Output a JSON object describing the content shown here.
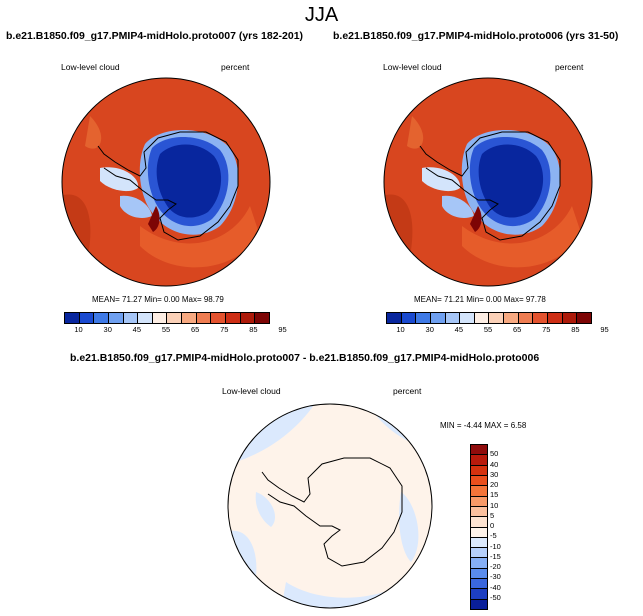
{
  "figure": {
    "title": "JJA"
  },
  "panel_left": {
    "header": "b.e21.B1850.f09_g17.PMIP4-midHolo.proto007 (yrs 182-201)",
    "variable_label": "Low-level cloud",
    "units_label": "percent",
    "stats": "MEAN= 71.27  Min=  0.00  Max= 98.79"
  },
  "panel_right": {
    "header": "b.e21.B1850.f09_g17.PMIP4-midHolo.proto006 (yrs 31-50)",
    "variable_label": "Low-level cloud",
    "units_label": "percent",
    "stats": "MEAN= 71.21  Min=  0.00  Max= 97.78"
  },
  "panel_diff": {
    "header": "b.e21.B1850.f09_g17.PMIP4-midHolo.proto007 - b.e21.B1850.f09_g17.PMIP4-midHolo.proto006",
    "variable_label": "Low-level cloud",
    "units_label": "percent",
    "stats": "MIN = -4.44 MAX =  6.58"
  },
  "colorbar_abs": {
    "ticks": [
      "10",
      "30",
      "45",
      "55",
      "65",
      "75",
      "85",
      "95"
    ],
    "colors": [
      "#08269e",
      "#1a4ad0",
      "#3f7ae6",
      "#6fa0f0",
      "#a6c6f7",
      "#d3e4fb",
      "#fdeee4",
      "#fbd1b8",
      "#f7a981",
      "#ef7d52",
      "#e4532f",
      "#cd2e15",
      "#ad1a0a",
      "#7d0505"
    ]
  },
  "colorbar_diff": {
    "ticks": [
      "50",
      "40",
      "30",
      "20",
      "15",
      "10",
      "5",
      "0",
      "-5",
      "-10",
      "-15",
      "-20",
      "-30",
      "-40",
      "-50"
    ],
    "colors": [
      "#8f0c0c",
      "#b81a0c",
      "#d5320f",
      "#ea4f1d",
      "#f47439",
      "#f89a68",
      "#fbc09e",
      "#fde3d1",
      "#fef3ea",
      "#dbe9fd",
      "#b6d0fb",
      "#86aff5",
      "#5a8ced",
      "#3a67df",
      "#1d3fc2",
      "#0a1f9a"
    ]
  }
}
